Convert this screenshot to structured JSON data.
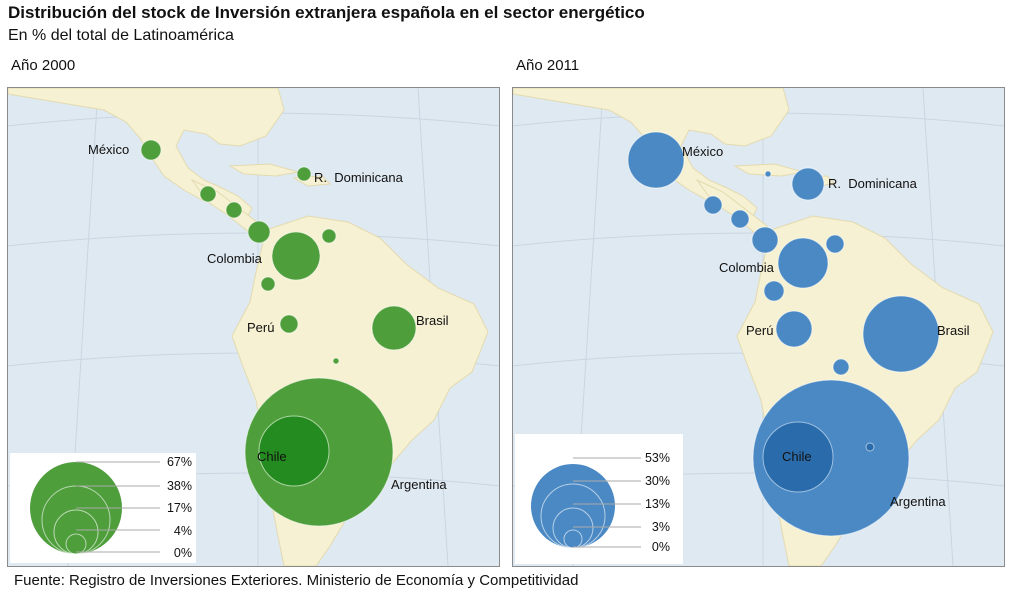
{
  "title": "Distribución del stock de Inversión extranjera española en el sector energético",
  "subtitle": "En % del total de Latinoamérica",
  "source": "Fuente: Registro de Inversiones Exteriores. Ministerio de Economía y Competitividad",
  "colors": {
    "ocean": "#dfe9f1",
    "land": "#f6f1d2",
    "grid": "#c9d6e2",
    "panel_2000_bubble": "#4e9e3c",
    "panel_2000_highlight": "#238b1f",
    "panel_2011_bubble": "#4a89c4",
    "panel_2011_highlight": "#2a6cab"
  },
  "panels": [
    {
      "label": "Año 2000",
      "legend": [
        "67%",
        "38%",
        "17%",
        "4%",
        "0%"
      ],
      "labels": {
        "mexico": "México",
        "dominicana": "R.  Dominicana",
        "colombia": "Colombia",
        "peru": "Perú",
        "brasil": "Brasil",
        "chile": "Chile",
        "argentina": "Argentina"
      }
    },
    {
      "label": "Año 2011",
      "legend": [
        "53%",
        "30%",
        "13%",
        "3%",
        "0%"
      ],
      "labels": {
        "mexico": "México",
        "dominicana": "R.  Dominicana",
        "colombia": "Colombia",
        "peru": "Perú",
        "brasil": "Brasil",
        "chile": "Chile",
        "argentina": "Argentina"
      }
    }
  ]
}
